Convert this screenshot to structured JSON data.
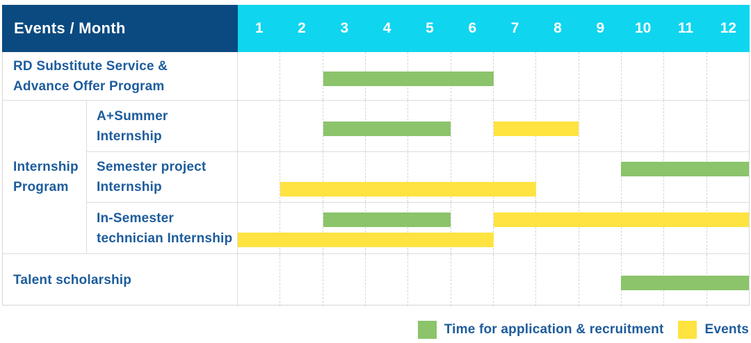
{
  "header": {
    "title": "Events / Month",
    "months": [
      "1",
      "2",
      "3",
      "4",
      "5",
      "6",
      "7",
      "8",
      "9",
      "10",
      "11",
      "12"
    ]
  },
  "colors": {
    "header_bg": "#0B4A80",
    "months_bg": "#10D5EF",
    "header_text": "#FFFFFF",
    "label_text": "#1D5C9C",
    "green": "#8BC46B",
    "yellow": "#FFE340",
    "grid": "#D6D6D6"
  },
  "group": {
    "label": "Internship Program",
    "label_lines": [
      "Internship",
      "Program"
    ]
  },
  "legend": [
    {
      "color_key": "green",
      "label": "Time for application & recruitment"
    },
    {
      "color_key": "yellow",
      "label": "Events"
    }
  ],
  "chart_data": {
    "type": "gantt",
    "unit": "month",
    "x_range": [
      1,
      12
    ],
    "x_ticks": [
      "1",
      "2",
      "3",
      "4",
      "5",
      "6",
      "7",
      "8",
      "9",
      "10",
      "11",
      "12"
    ],
    "corner_title": "Events / Month",
    "bar_types": {
      "green": "Time for application & recruitment",
      "yellow": "Events"
    },
    "rows": [
      {
        "group": null,
        "label": "RD Substitute Service & Advance Offer Program",
        "label_lines": [
          "RD Substitute Service &",
          "Advance Offer Program"
        ],
        "bars": [
          {
            "color": "green",
            "start": 3,
            "end": 6,
            "lane": "single"
          }
        ]
      },
      {
        "group": "Internship Program",
        "label": "A+Summer Internship",
        "label_lines": [
          "A+Summer",
          "Internship"
        ],
        "bars": [
          {
            "color": "green",
            "start": 3,
            "end": 5,
            "lane": "single"
          },
          {
            "color": "yellow",
            "start": 7,
            "end": 8,
            "lane": "single"
          }
        ]
      },
      {
        "group": "Internship Program",
        "label": "Semester project Internship",
        "label_lines": [
          "Semester project",
          "Internship"
        ],
        "bars": [
          {
            "color": "green",
            "start": 10,
            "end": 12,
            "lane": "top"
          },
          {
            "color": "yellow",
            "start": 2,
            "end": 7,
            "lane": "bottom"
          }
        ]
      },
      {
        "group": "Internship Program",
        "label": "In-Semester technician Internship",
        "label_lines": [
          "In-Semester",
          "technician Internship"
        ],
        "bars": [
          {
            "color": "green",
            "start": 3,
            "end": 5,
            "lane": "top"
          },
          {
            "color": "yellow",
            "start": 7,
            "end": 12,
            "lane": "top"
          },
          {
            "color": "yellow",
            "start": 1,
            "end": 6,
            "lane": "bottom"
          }
        ]
      },
      {
        "group": null,
        "label": "Talent scholarship",
        "label_lines": [
          "Talent scholarship"
        ],
        "bars": [
          {
            "color": "green",
            "start": 10,
            "end": 12,
            "lane": "single"
          }
        ]
      }
    ]
  }
}
